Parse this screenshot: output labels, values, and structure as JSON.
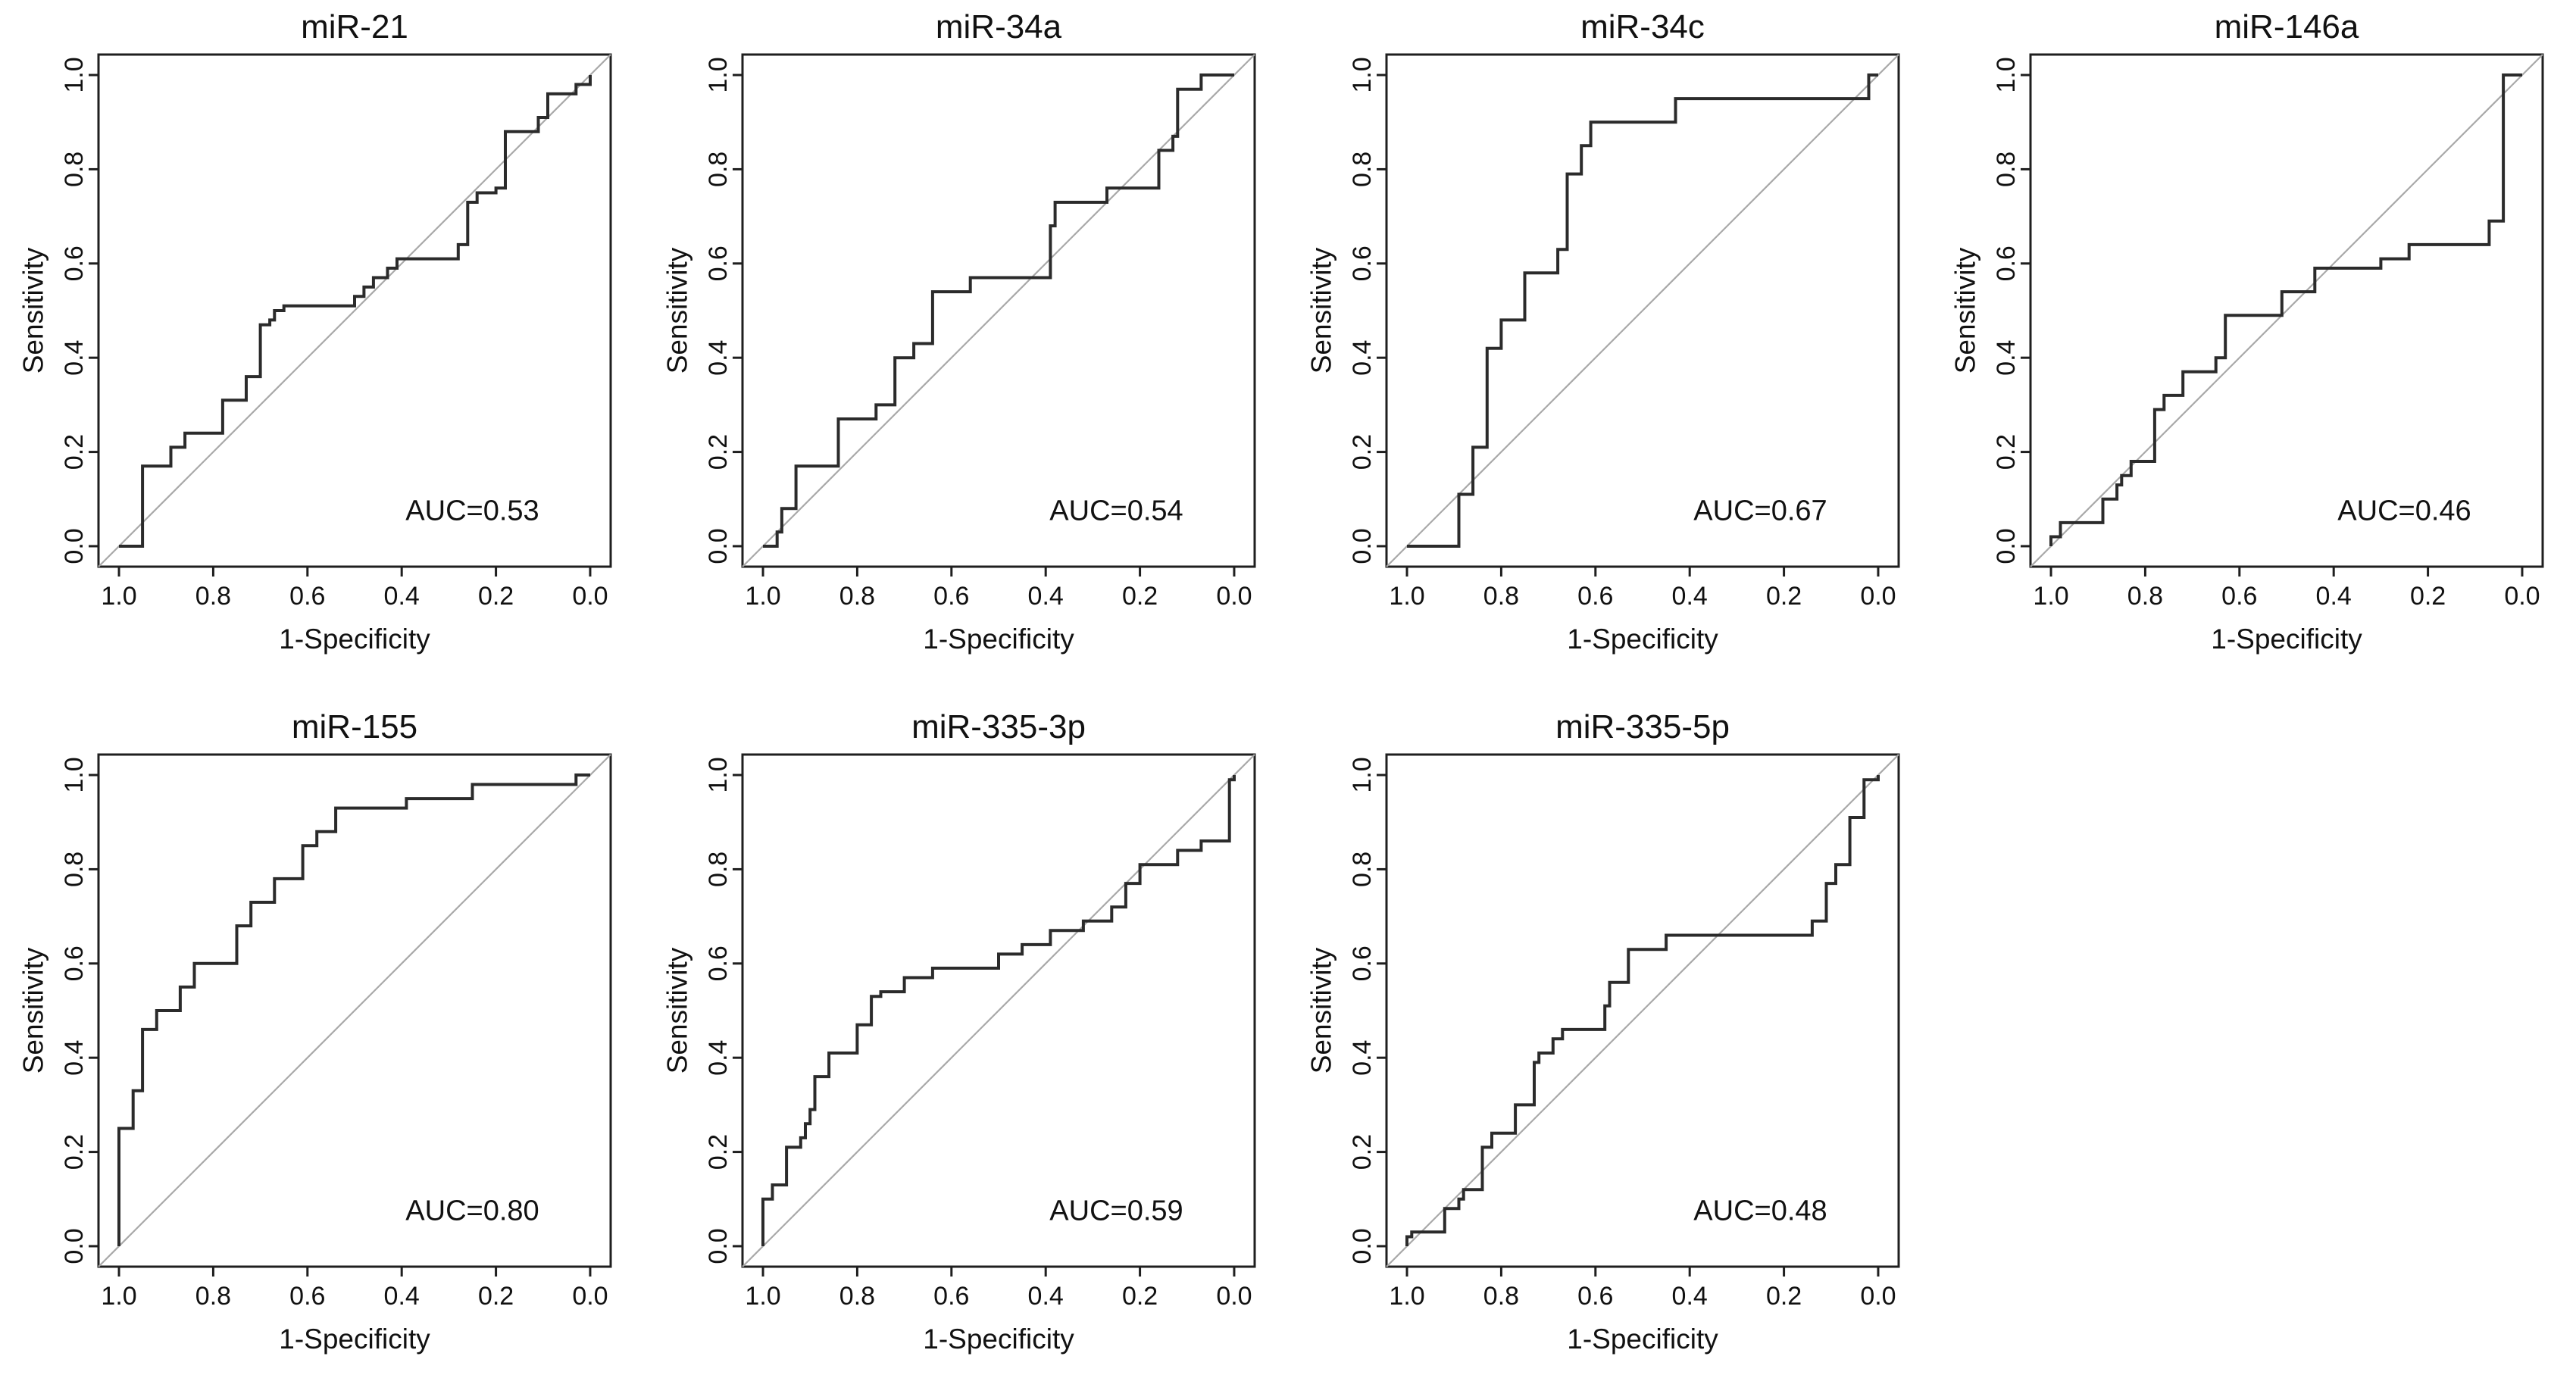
{
  "figure": {
    "background": "#ffffff",
    "colors": {
      "curve": "#2b2b2b",
      "diagonal": "#a8a8a8",
      "box": "#1f1f1f",
      "text": "#111111"
    }
  },
  "chart_data": {
    "type": "line",
    "subtype": "roc-step-curves",
    "xlabel": "1-Specificity",
    "ylabel": "Sensitivity",
    "x_ticks": [
      "1.0",
      "0.8",
      "0.6",
      "0.4",
      "0.2",
      "0.0"
    ],
    "y_ticks": [
      "0.0",
      "0.2",
      "0.4",
      "0.6",
      "0.8",
      "1.0"
    ],
    "x_axis_note": "x axis is displayed reversed: 1.0 at left, 0.0 at right",
    "xlim": [
      1.0,
      0.0
    ],
    "ylim": [
      0.0,
      1.0
    ],
    "grid": false,
    "layout": {
      "rows": 2,
      "cols": 4,
      "empty_cells": [
        [
          1,
          3
        ]
      ]
    },
    "panels": [
      {
        "title": "miR-21",
        "auc": 0.53,
        "auc_label": "AUC=0.53",
        "points": [
          [
            1.0,
            0.0
          ],
          [
            0.95,
            0.0
          ],
          [
            0.95,
            0.17
          ],
          [
            0.89,
            0.17
          ],
          [
            0.89,
            0.21
          ],
          [
            0.86,
            0.21
          ],
          [
            0.86,
            0.24
          ],
          [
            0.78,
            0.24
          ],
          [
            0.78,
            0.31
          ],
          [
            0.73,
            0.31
          ],
          [
            0.73,
            0.36
          ],
          [
            0.7,
            0.36
          ],
          [
            0.7,
            0.47
          ],
          [
            0.68,
            0.47
          ],
          [
            0.68,
            0.48
          ],
          [
            0.67,
            0.48
          ],
          [
            0.67,
            0.5
          ],
          [
            0.65,
            0.5
          ],
          [
            0.65,
            0.51
          ],
          [
            0.5,
            0.51
          ],
          [
            0.5,
            0.53
          ],
          [
            0.48,
            0.53
          ],
          [
            0.48,
            0.55
          ],
          [
            0.46,
            0.55
          ],
          [
            0.46,
            0.57
          ],
          [
            0.43,
            0.57
          ],
          [
            0.43,
            0.59
          ],
          [
            0.41,
            0.59
          ],
          [
            0.41,
            0.61
          ],
          [
            0.39,
            0.61
          ],
          [
            0.28,
            0.61
          ],
          [
            0.28,
            0.64
          ],
          [
            0.26,
            0.64
          ],
          [
            0.26,
            0.73
          ],
          [
            0.24,
            0.73
          ],
          [
            0.24,
            0.75
          ],
          [
            0.2,
            0.75
          ],
          [
            0.2,
            0.76
          ],
          [
            0.18,
            0.76
          ],
          [
            0.18,
            0.88
          ],
          [
            0.11,
            0.88
          ],
          [
            0.11,
            0.91
          ],
          [
            0.09,
            0.91
          ],
          [
            0.09,
            0.96
          ],
          [
            0.03,
            0.96
          ],
          [
            0.03,
            0.98
          ],
          [
            0.0,
            0.98
          ],
          [
            0.0,
            1.0
          ]
        ]
      },
      {
        "title": "miR-34a",
        "auc": 0.54,
        "auc_label": "AUC=0.54",
        "points": [
          [
            1.0,
            0.0
          ],
          [
            0.97,
            0.0
          ],
          [
            0.97,
            0.03
          ],
          [
            0.96,
            0.03
          ],
          [
            0.96,
            0.08
          ],
          [
            0.93,
            0.08
          ],
          [
            0.93,
            0.17
          ],
          [
            0.84,
            0.17
          ],
          [
            0.84,
            0.27
          ],
          [
            0.76,
            0.27
          ],
          [
            0.76,
            0.3
          ],
          [
            0.72,
            0.3
          ],
          [
            0.72,
            0.4
          ],
          [
            0.68,
            0.4
          ],
          [
            0.68,
            0.43
          ],
          [
            0.64,
            0.43
          ],
          [
            0.64,
            0.54
          ],
          [
            0.56,
            0.54
          ],
          [
            0.56,
            0.57
          ],
          [
            0.39,
            0.57
          ],
          [
            0.39,
            0.68
          ],
          [
            0.38,
            0.68
          ],
          [
            0.38,
            0.73
          ],
          [
            0.27,
            0.73
          ],
          [
            0.27,
            0.76
          ],
          [
            0.16,
            0.76
          ],
          [
            0.16,
            0.84
          ],
          [
            0.13,
            0.84
          ],
          [
            0.13,
            0.87
          ],
          [
            0.12,
            0.87
          ],
          [
            0.12,
            0.97
          ],
          [
            0.07,
            0.97
          ],
          [
            0.07,
            1.0
          ],
          [
            0.0,
            1.0
          ]
        ]
      },
      {
        "title": "miR-34c",
        "auc": 0.67,
        "auc_label": "AUC=0.67",
        "points": [
          [
            1.0,
            0.0
          ],
          [
            0.89,
            0.0
          ],
          [
            0.89,
            0.11
          ],
          [
            0.86,
            0.11
          ],
          [
            0.86,
            0.21
          ],
          [
            0.83,
            0.21
          ],
          [
            0.83,
            0.42
          ],
          [
            0.8,
            0.42
          ],
          [
            0.8,
            0.48
          ],
          [
            0.75,
            0.48
          ],
          [
            0.75,
            0.58
          ],
          [
            0.68,
            0.58
          ],
          [
            0.68,
            0.63
          ],
          [
            0.66,
            0.63
          ],
          [
            0.66,
            0.79
          ],
          [
            0.63,
            0.79
          ],
          [
            0.63,
            0.85
          ],
          [
            0.61,
            0.85
          ],
          [
            0.61,
            0.9
          ],
          [
            0.43,
            0.9
          ],
          [
            0.43,
            0.95
          ],
          [
            0.02,
            0.95
          ],
          [
            0.02,
            1.0
          ],
          [
            0.0,
            1.0
          ]
        ]
      },
      {
        "title": "miR-146a",
        "auc": 0.46,
        "auc_label": "AUC=0.46",
        "points": [
          [
            1.0,
            0.0
          ],
          [
            1.0,
            0.02
          ],
          [
            0.98,
            0.02
          ],
          [
            0.98,
            0.05
          ],
          [
            0.89,
            0.05
          ],
          [
            0.89,
            0.1
          ],
          [
            0.86,
            0.1
          ],
          [
            0.86,
            0.13
          ],
          [
            0.85,
            0.13
          ],
          [
            0.85,
            0.15
          ],
          [
            0.83,
            0.15
          ],
          [
            0.83,
            0.18
          ],
          [
            0.78,
            0.18
          ],
          [
            0.78,
            0.29
          ],
          [
            0.76,
            0.29
          ],
          [
            0.76,
            0.32
          ],
          [
            0.72,
            0.32
          ],
          [
            0.72,
            0.37
          ],
          [
            0.65,
            0.37
          ],
          [
            0.65,
            0.4
          ],
          [
            0.63,
            0.4
          ],
          [
            0.63,
            0.49
          ],
          [
            0.51,
            0.49
          ],
          [
            0.51,
            0.54
          ],
          [
            0.44,
            0.54
          ],
          [
            0.44,
            0.59
          ],
          [
            0.3,
            0.59
          ],
          [
            0.3,
            0.61
          ],
          [
            0.24,
            0.61
          ],
          [
            0.24,
            0.64
          ],
          [
            0.07,
            0.64
          ],
          [
            0.07,
            0.69
          ],
          [
            0.04,
            0.69
          ],
          [
            0.04,
            1.0
          ],
          [
            0.0,
            1.0
          ]
        ]
      },
      {
        "title": "miR-155",
        "auc": 0.8,
        "auc_label": "AUC=0.80",
        "points": [
          [
            1.0,
            0.0
          ],
          [
            1.0,
            0.25
          ],
          [
            0.97,
            0.25
          ],
          [
            0.97,
            0.33
          ],
          [
            0.95,
            0.33
          ],
          [
            0.95,
            0.46
          ],
          [
            0.92,
            0.46
          ],
          [
            0.92,
            0.5
          ],
          [
            0.87,
            0.5
          ],
          [
            0.87,
            0.55
          ],
          [
            0.84,
            0.55
          ],
          [
            0.84,
            0.6
          ],
          [
            0.75,
            0.6
          ],
          [
            0.75,
            0.68
          ],
          [
            0.72,
            0.68
          ],
          [
            0.72,
            0.73
          ],
          [
            0.67,
            0.73
          ],
          [
            0.67,
            0.78
          ],
          [
            0.61,
            0.78
          ],
          [
            0.61,
            0.85
          ],
          [
            0.58,
            0.85
          ],
          [
            0.58,
            0.88
          ],
          [
            0.54,
            0.88
          ],
          [
            0.54,
            0.93
          ],
          [
            0.39,
            0.93
          ],
          [
            0.39,
            0.95
          ],
          [
            0.25,
            0.95
          ],
          [
            0.25,
            0.98
          ],
          [
            0.03,
            0.98
          ],
          [
            0.03,
            1.0
          ],
          [
            0.0,
            1.0
          ]
        ]
      },
      {
        "title": "miR-335-3p",
        "auc": 0.59,
        "auc_label": "AUC=0.59",
        "points": [
          [
            1.0,
            0.0
          ],
          [
            1.0,
            0.1
          ],
          [
            0.98,
            0.1
          ],
          [
            0.98,
            0.13
          ],
          [
            0.95,
            0.13
          ],
          [
            0.95,
            0.21
          ],
          [
            0.92,
            0.21
          ],
          [
            0.92,
            0.23
          ],
          [
            0.91,
            0.23
          ],
          [
            0.91,
            0.26
          ],
          [
            0.9,
            0.26
          ],
          [
            0.9,
            0.29
          ],
          [
            0.89,
            0.29
          ],
          [
            0.89,
            0.36
          ],
          [
            0.86,
            0.36
          ],
          [
            0.86,
            0.41
          ],
          [
            0.8,
            0.41
          ],
          [
            0.8,
            0.47
          ],
          [
            0.77,
            0.47
          ],
          [
            0.77,
            0.53
          ],
          [
            0.75,
            0.53
          ],
          [
            0.75,
            0.54
          ],
          [
            0.7,
            0.54
          ],
          [
            0.7,
            0.57
          ],
          [
            0.64,
            0.57
          ],
          [
            0.64,
            0.59
          ],
          [
            0.5,
            0.59
          ],
          [
            0.5,
            0.62
          ],
          [
            0.45,
            0.62
          ],
          [
            0.45,
            0.64
          ],
          [
            0.39,
            0.64
          ],
          [
            0.39,
            0.67
          ],
          [
            0.32,
            0.67
          ],
          [
            0.32,
            0.69
          ],
          [
            0.26,
            0.69
          ],
          [
            0.26,
            0.72
          ],
          [
            0.23,
            0.72
          ],
          [
            0.23,
            0.77
          ],
          [
            0.2,
            0.77
          ],
          [
            0.2,
            0.81
          ],
          [
            0.12,
            0.81
          ],
          [
            0.12,
            0.84
          ],
          [
            0.07,
            0.84
          ],
          [
            0.07,
            0.86
          ],
          [
            0.01,
            0.86
          ],
          [
            0.01,
            0.99
          ],
          [
            0.0,
            0.99
          ],
          [
            0.0,
            1.0
          ]
        ]
      },
      {
        "title": "miR-335-5p",
        "auc": 0.48,
        "auc_label": "AUC=0.48",
        "points": [
          [
            1.0,
            0.0
          ],
          [
            1.0,
            0.02
          ],
          [
            0.99,
            0.02
          ],
          [
            0.99,
            0.03
          ],
          [
            0.92,
            0.03
          ],
          [
            0.92,
            0.08
          ],
          [
            0.89,
            0.08
          ],
          [
            0.89,
            0.1
          ],
          [
            0.88,
            0.1
          ],
          [
            0.88,
            0.12
          ],
          [
            0.84,
            0.12
          ],
          [
            0.84,
            0.21
          ],
          [
            0.82,
            0.21
          ],
          [
            0.82,
            0.24
          ],
          [
            0.77,
            0.24
          ],
          [
            0.77,
            0.3
          ],
          [
            0.73,
            0.3
          ],
          [
            0.73,
            0.39
          ],
          [
            0.72,
            0.39
          ],
          [
            0.72,
            0.41
          ],
          [
            0.69,
            0.41
          ],
          [
            0.69,
            0.44
          ],
          [
            0.67,
            0.44
          ],
          [
            0.67,
            0.46
          ],
          [
            0.58,
            0.46
          ],
          [
            0.58,
            0.51
          ],
          [
            0.57,
            0.51
          ],
          [
            0.57,
            0.56
          ],
          [
            0.53,
            0.56
          ],
          [
            0.53,
            0.63
          ],
          [
            0.45,
            0.63
          ],
          [
            0.45,
            0.66
          ],
          [
            0.14,
            0.66
          ],
          [
            0.14,
            0.69
          ],
          [
            0.11,
            0.69
          ],
          [
            0.11,
            0.77
          ],
          [
            0.09,
            0.77
          ],
          [
            0.09,
            0.81
          ],
          [
            0.06,
            0.81
          ],
          [
            0.06,
            0.91
          ],
          [
            0.03,
            0.91
          ],
          [
            0.03,
            0.99
          ],
          [
            0.0,
            0.99
          ],
          [
            0.0,
            1.0
          ]
        ]
      }
    ]
  }
}
